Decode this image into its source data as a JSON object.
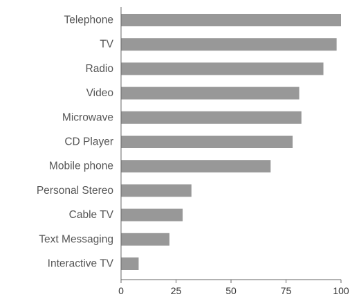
{
  "chart_data": {
    "type": "bar",
    "orientation": "horizontal",
    "title": "",
    "xlabel": "",
    "ylabel": "",
    "categories": [
      "Telephone",
      "TV",
      "Radio",
      "Video",
      "Microwave",
      "CD Player",
      "Mobile phone",
      "Personal Stereo",
      "Cable TV",
      "Text Messaging",
      "Interactive TV"
    ],
    "values": [
      100,
      98,
      92,
      81,
      82,
      78,
      68,
      32,
      28,
      22,
      8
    ],
    "xlim": [
      0,
      100
    ],
    "xticks": [
      "0",
      "25",
      "50",
      "75",
      "100"
    ],
    "grid": false,
    "legend": "none",
    "colors": {
      "bar": "#989898",
      "axis": "#666666",
      "label": "#555555"
    }
  }
}
